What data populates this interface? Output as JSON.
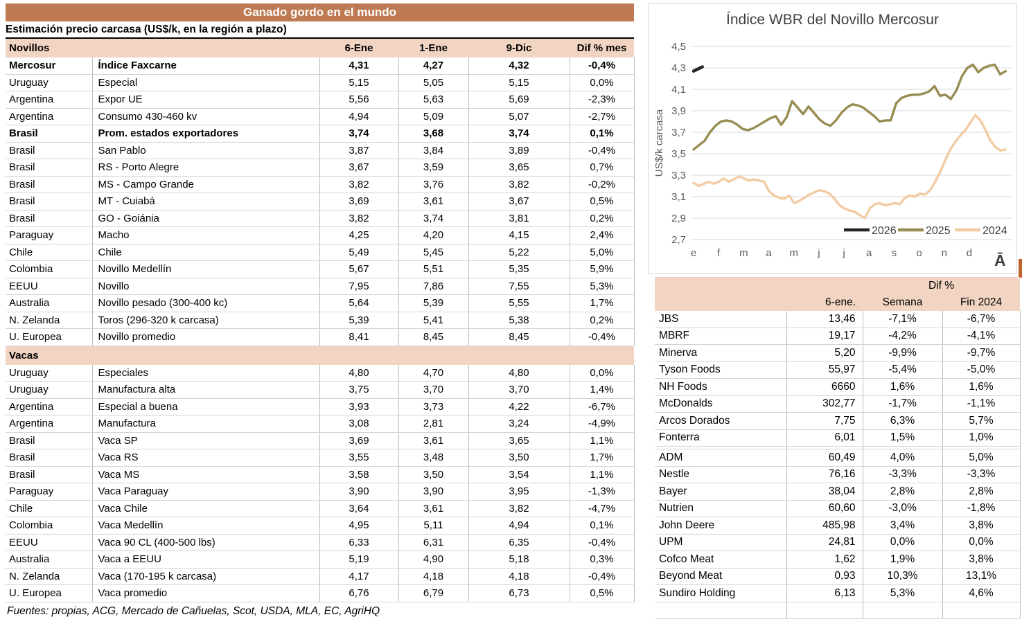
{
  "left_table": {
    "title": "Ganado gordo en el mundo",
    "subtitle": "Estimación precio carcasa (US$/k, en la región a plazo)",
    "footer": "Fuentes: propias, ACG, Mercado de Cañuelas, Scot, USDA, MLA, EC, AgriHQ",
    "sections": [
      {
        "header": "Novillos",
        "columns": [
          "6-Ene",
          "1-Ene",
          "9-Dic",
          "Dif % mes"
        ],
        "rows": [
          {
            "country": "Mercosur",
            "item": "Índice Faxcarne",
            "values": [
              "4,31",
              "4,27",
              "4,32"
            ],
            "dif": "-0,4%",
            "bold": true
          },
          {
            "country": "Uruguay",
            "item": "Especial",
            "values": [
              "5,15",
              "5,05",
              "5,15"
            ],
            "dif": "0,0%"
          },
          {
            "country": "Argentina",
            "item": "Expor UE",
            "values": [
              "5,56",
              "5,63",
              "5,69"
            ],
            "dif": "-2,3%"
          },
          {
            "country": "Argentina",
            "item": "Consumo 430-460 kv",
            "values": [
              "4,94",
              "5,09",
              "5,07"
            ],
            "dif": "-2,7%"
          },
          {
            "country": "Brasil",
            "item": "Prom. estados exportadores",
            "values": [
              "3,74",
              "3,68",
              "3,74"
            ],
            "dif": "0,1%",
            "bold": true
          },
          {
            "country": "Brasil",
            "item": "San Pablo",
            "values": [
              "3,87",
              "3,84",
              "3,89"
            ],
            "dif": "-0,4%"
          },
          {
            "country": "Brasil",
            "item": "RS - Porto Alegre",
            "values": [
              "3,67",
              "3,59",
              "3,65"
            ],
            "dif": "0,7%"
          },
          {
            "country": "Brasil",
            "item": "MS - Campo Grande",
            "values": [
              "3,82",
              "3,76",
              "3,82"
            ],
            "dif": "-0,2%"
          },
          {
            "country": "Brasil",
            "item": "MT - Cuiabá",
            "values": [
              "3,69",
              "3,61",
              "3,67"
            ],
            "dif": "0,5%"
          },
          {
            "country": "Brasil",
            "item": "GO - Goiánia",
            "values": [
              "3,82",
              "3,74",
              "3,81"
            ],
            "dif": "0,2%"
          },
          {
            "country": "Paraguay",
            "item": "Macho",
            "values": [
              "4,25",
              "4,20",
              "4,15"
            ],
            "dif": "2,4%"
          },
          {
            "country": "Chile",
            "item": "Chile",
            "values": [
              "5,49",
              "5,45",
              "5,22"
            ],
            "dif": "5,0%"
          },
          {
            "country": "Colombia",
            "item": "Novillo Medellín",
            "values": [
              "5,67",
              "5,51",
              "5,35"
            ],
            "dif": "5,9%"
          },
          {
            "country": "EEUU",
            "item": "Novillo",
            "values": [
              "7,95",
              "7,86",
              "7,55"
            ],
            "dif": "5,3%"
          },
          {
            "country": "Australia",
            "item": "Novillo pesado (300-400 kc)",
            "values": [
              "5,64",
              "5,39",
              "5,55"
            ],
            "dif": "1,7%"
          },
          {
            "country": "N. Zelanda",
            "item": "Toros (296-320 k carcasa)",
            "values": [
              "5,39",
              "5,41",
              "5,38"
            ],
            "dif": "0,2%"
          },
          {
            "country": "U. Europea",
            "item": "Novillo promedio",
            "values": [
              "8,41",
              "8,45",
              "8,45"
            ],
            "dif": "-0,4%"
          }
        ]
      },
      {
        "header": "Vacas",
        "rows": [
          {
            "country": "Uruguay",
            "item": "Especiales",
            "values": [
              "4,80",
              "4,70",
              "4,80"
            ],
            "dif": "0,0%"
          },
          {
            "country": "Uruguay",
            "item": "Manufactura alta",
            "values": [
              "3,75",
              "3,70",
              "3,70"
            ],
            "dif": "1,4%"
          },
          {
            "country": "Argentina",
            "item": "Especial a buena",
            "values": [
              "3,93",
              "3,73",
              "4,22"
            ],
            "dif": "-6,7%"
          },
          {
            "country": "Argentina",
            "item": "Manufactura",
            "values": [
              "3,08",
              "2,81",
              "3,24"
            ],
            "dif": "-4,9%"
          },
          {
            "country": "Brasil",
            "item": "Vaca SP",
            "values": [
              "3,69",
              "3,61",
              "3,65"
            ],
            "dif": "1,1%"
          },
          {
            "country": "Brasil",
            "item": "Vaca RS",
            "values": [
              "3,55",
              "3,48",
              "3,50"
            ],
            "dif": "1,7%"
          },
          {
            "country": "Brasil",
            "item": "Vaca MS",
            "values": [
              "3,58",
              "3,50",
              "3,54"
            ],
            "dif": "1,1%"
          },
          {
            "country": "Paraguay",
            "item": "Vaca Paraguay",
            "values": [
              "3,90",
              "3,90",
              "3,95"
            ],
            "dif": "-1,3%"
          },
          {
            "country": "Chile",
            "item": "Vaca Chile",
            "values": [
              "3,64",
              "3,61",
              "3,82"
            ],
            "dif": "-4,7%"
          },
          {
            "country": "Colombia",
            "item": "Vaca Medellín",
            "values": [
              "4,95",
              "5,11",
              "4,94"
            ],
            "dif": "0,1%"
          },
          {
            "country": "EEUU",
            "item": "Vaca 90 CL (400-500 lbs)",
            "values": [
              "6,33",
              "6,31",
              "6,35"
            ],
            "dif": "-0,4%"
          },
          {
            "country": "Australia",
            "item": "Vaca a EEUU",
            "values": [
              "5,19",
              "4,90",
              "5,18"
            ],
            "dif": "0,3%"
          },
          {
            "country": "N. Zelanda",
            "item": "Vaca (170-195 k carcasa)",
            "values": [
              "4,17",
              "4,18",
              "4,18"
            ],
            "dif": "-0,4%"
          },
          {
            "country": "U. Europea",
            "item": "Vaca promedio",
            "values": [
              "6,76",
              "6,79",
              "6,73"
            ],
            "dif": "0,5%"
          }
        ]
      }
    ]
  },
  "chart_data": {
    "type": "line",
    "title": "Índice WBR del Novillo Mercosur",
    "ylabel": "US$/k carcasa",
    "ylim": [
      2.7,
      4.5
    ],
    "ytick_step": 0.2,
    "grid": true,
    "legend_position": "inside-bottom-right",
    "x_tick_labels": [
      "e",
      "f",
      "m",
      "a",
      "m",
      "j",
      "j",
      "a",
      "s",
      "o",
      "n",
      "d"
    ],
    "x_total_months": 12.55,
    "axis_color": "#595959",
    "grid_color": "#D9D9D9",
    "series": [
      {
        "name": "2026",
        "color": "#262626",
        "stroke_width": 4.5,
        "x_start": 0,
        "x_span": 0.35,
        "values": [
          4.27,
          4.31
        ]
      },
      {
        "name": "2025",
        "color": "#978C51",
        "stroke_width": 3.4,
        "x_start": 0,
        "x_span": 12.45,
        "values": [
          3.54,
          3.58,
          3.62,
          3.7,
          3.76,
          3.8,
          3.81,
          3.8,
          3.77,
          3.73,
          3.72,
          3.74,
          3.77,
          3.8,
          3.83,
          3.85,
          3.77,
          3.84,
          3.99,
          3.93,
          3.87,
          3.94,
          3.88,
          3.82,
          3.78,
          3.76,
          3.81,
          3.88,
          3.93,
          3.96,
          3.95,
          3.93,
          3.89,
          3.85,
          3.8,
          3.81,
          3.81,
          3.97,
          4.02,
          4.04,
          4.05,
          4.05,
          4.06,
          4.08,
          4.13,
          4.04,
          4.05,
          4.01,
          4.09,
          4.22,
          4.3,
          4.33,
          4.26,
          4.3,
          4.32,
          4.33,
          4.24,
          4.27
        ]
      },
      {
        "name": "2024",
        "color": "#F2CBA3",
        "stroke_width": 3.4,
        "x_start": 0,
        "x_span": 12.45,
        "values": [
          3.23,
          3.2,
          3.22,
          3.24,
          3.22,
          3.24,
          3.27,
          3.24,
          3.26,
          3.29,
          3.27,
          3.25,
          3.26,
          3.25,
          3.24,
          3.15,
          3.11,
          3.09,
          3.08,
          3.11,
          3.04,
          3.06,
          3.09,
          3.12,
          3.14,
          3.16,
          3.15,
          3.13,
          3.08,
          3.02,
          2.99,
          2.97,
          2.96,
          2.93,
          2.9,
          2.99,
          3.03,
          3.04,
          3.02,
          3.03,
          3.04,
          3.03,
          3.09,
          3.11,
          3.1,
          3.13,
          3.12,
          3.16,
          3.24,
          3.33,
          3.44,
          3.54,
          3.61,
          3.67,
          3.72,
          3.79,
          3.86,
          3.81,
          3.72,
          3.62,
          3.56,
          3.53,
          3.54
        ]
      }
    ]
  },
  "right_table": {
    "header_top": "Dif %",
    "columns": [
      "6-ene.",
      "Semana",
      "Fin 2024"
    ],
    "groups": [
      [
        {
          "name": "JBS",
          "price": "13,46",
          "week": "-7,1%",
          "fin": "-6,7%"
        },
        {
          "name": "MBRF",
          "price": "19,17",
          "week": "-4,2%",
          "fin": "-4,1%"
        },
        {
          "name": "Minerva",
          "price": "5,20",
          "week": "-9,9%",
          "fin": "-9,7%"
        },
        {
          "name": "Tyson Foods",
          "price": "55,97",
          "week": "-5,4%",
          "fin": "-5,0%"
        },
        {
          "name": "NH Foods",
          "price": "6660",
          "week": "1,6%",
          "fin": "1,6%"
        },
        {
          "name": "McDonalds",
          "price": "302,77",
          "week": "-1,7%",
          "fin": "-1,1%"
        },
        {
          "name": "Arcos Dorados",
          "price": "7,75",
          "week": "6,3%",
          "fin": "5,7%"
        },
        {
          "name": "Fonterra",
          "price": "6,01",
          "week": "1,5%",
          "fin": "1,0%"
        }
      ],
      [
        {
          "name": "ADM",
          "price": "60,49",
          "week": "4,0%",
          "fin": "5,0%"
        },
        {
          "name": "Nestle",
          "price": "76,16",
          "week": "-3,3%",
          "fin": "-3,3%"
        },
        {
          "name": "Bayer",
          "price": "38,04",
          "week": "2,8%",
          "fin": "2,8%"
        },
        {
          "name": "Nutrien",
          "price": "60,60",
          "week": "-3,0%",
          "fin": "-1,8%"
        },
        {
          "name": "John Deere",
          "price": "485,98",
          "week": "3,4%",
          "fin": "3,8%"
        },
        {
          "name": "UPM",
          "price": "24,81",
          "week": "0,0%",
          "fin": "0,0%"
        },
        {
          "name": "Cofco Meat",
          "price": "1,62",
          "week": "1,9%",
          "fin": "3,8%"
        },
        {
          "name": "Beyond Meat",
          "price": "0,93",
          "week": "10,3%",
          "fin": "13,1%"
        },
        {
          "name": "Sundiro Holding",
          "price": "6,13",
          "week": "5,3%",
          "fin": "4,6%"
        }
      ]
    ]
  },
  "misc": {
    "corner_glyph": "Ā",
    "accent_brown": "#BE7B53",
    "accent_pink": "#F1D4C2"
  }
}
